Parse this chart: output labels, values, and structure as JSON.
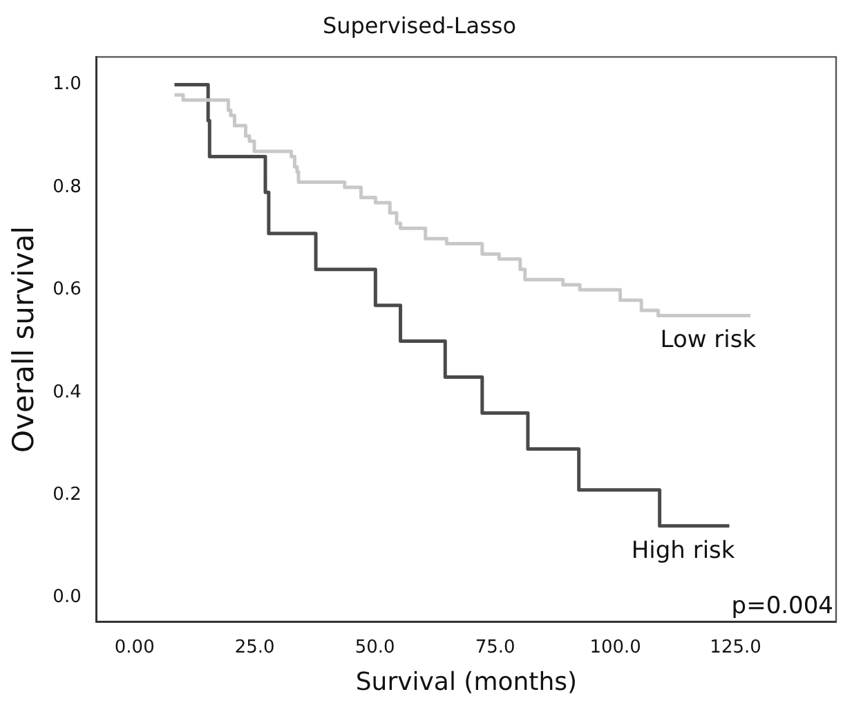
{
  "chart_data": {
    "type": "step",
    "title": "Supervised-Lasso",
    "xlabel": "Survival (months)",
    "ylabel": "Overall survival",
    "xlim": [
      -7.9,
      145.9
    ],
    "ylim": [
      -0.047,
      1.054
    ],
    "xticks": [
      {
        "value": 0,
        "label": "0.00"
      },
      {
        "value": 25,
        "label": "25.0"
      },
      {
        "value": 50,
        "label": "50.0"
      },
      {
        "value": 75,
        "label": "75.0"
      },
      {
        "value": 100,
        "label": "100.0"
      },
      {
        "value": 125,
        "label": "125.0"
      }
    ],
    "yticks": [
      {
        "value": 0,
        "label": "0.0"
      },
      {
        "value": 0.2,
        "label": "0.2"
      },
      {
        "value": 0.4,
        "label": "0.4"
      },
      {
        "value": 0.6,
        "label": "0.6"
      },
      {
        "value": 0.8,
        "label": "0.8"
      },
      {
        "value": 1,
        "label": "1.0"
      }
    ],
    "grid": false,
    "legend": false,
    "marker": "none",
    "line_style": "solid",
    "annotations": [
      "p=0.004"
    ],
    "series": [
      {
        "name": "Low risk",
        "color": "#c8c8c8",
        "x": [
          8.3,
          10.1,
          19.5,
          20.0,
          20.8,
          22.7,
          23.1,
          23.9,
          24.9,
          32.6,
          33.3,
          33.8,
          34.1,
          43.7,
          47.1,
          50.1,
          53.1,
          54.5,
          55.3,
          60.5,
          64.9,
          72.3,
          75.8,
          80.2,
          81.2,
          89.1,
          92.6,
          101.0,
          105.4,
          108.9,
          128.1
        ],
        "values": [
          0.98,
          0.97,
          0.95,
          0.94,
          0.92,
          0.92,
          0.9,
          0.89,
          0.87,
          0.86,
          0.84,
          0.83,
          0.81,
          0.8,
          0.78,
          0.77,
          0.75,
          0.73,
          0.72,
          0.7,
          0.69,
          0.67,
          0.66,
          0.64,
          0.62,
          0.61,
          0.6,
          0.58,
          0.56,
          0.55,
          0.55
        ]
      },
      {
        "name": "High risk",
        "color": "#4a4a4a",
        "x": [
          8.3,
          15.3,
          15.6,
          27.2,
          27.9,
          37.7,
          50.1,
          55.3,
          64.6,
          72.3,
          81.8,
          92.4,
          109.2,
          123.7
        ],
        "values": [
          1.0,
          0.93,
          0.86,
          0.79,
          0.71,
          0.64,
          0.57,
          0.5,
          0.43,
          0.36,
          0.29,
          0.21,
          0.14,
          0.14
        ]
      }
    ]
  }
}
